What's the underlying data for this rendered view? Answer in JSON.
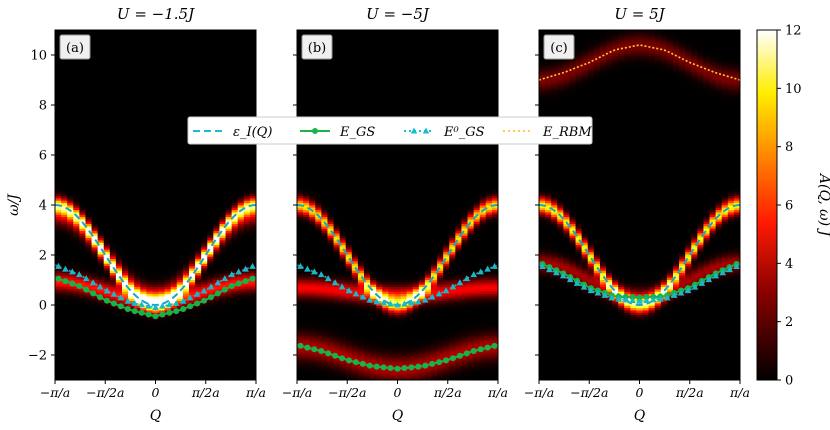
{
  "figure": {
    "ylabel": "ω/J",
    "xlabel": "Q",
    "colorbar_label": "A(Q, ω) J",
    "colorbar_ticks": [
      "0",
      "2",
      "4",
      "6",
      "8",
      "10",
      "12"
    ],
    "colorbar_range": [
      0,
      12
    ],
    "y_ticks": [
      "−2",
      "0",
      "2",
      "4",
      "6",
      "8",
      "10"
    ],
    "x_ticks": [
      "−π/a",
      "−π/2a",
      "0",
      "π/2a",
      "π/a"
    ],
    "legend": [
      {
        "label": "ε_I(Q)",
        "color": "#17becf",
        "style": "dashed"
      },
      {
        "label": "E_GS",
        "color": "#1bb34a",
        "style": "solid-circles"
      },
      {
        "label": "E⁰_GS",
        "color": "#17becf",
        "style": "dotted-triangles"
      },
      {
        "label": "E_RBM",
        "color": "#ffcc44",
        "style": "dotted"
      }
    ]
  },
  "chart_data": [
    {
      "type": "heatmap",
      "panel": "(a)",
      "title": "U = −1.5J",
      "xlim": [
        -3.1416,
        3.1416
      ],
      "ylim": [
        -3,
        11
      ],
      "series": [
        {
          "name": "ε_I(Q)",
          "x": [
            -3.1416,
            -2.3562,
            -1.5708,
            -0.7854,
            0,
            0.7854,
            1.5708,
            2.3562,
            3.1416
          ],
          "values": [
            4.0,
            3.41,
            2.0,
            0.59,
            0.0,
            0.59,
            2.0,
            3.41,
            4.0
          ]
        },
        {
          "name": "E_GS",
          "x": [
            -3.1416,
            -2.3562,
            -1.5708,
            -0.7854,
            0,
            0.7854,
            1.5708,
            2.3562,
            3.1416
          ],
          "values": [
            1.1,
            0.75,
            0.2,
            -0.2,
            -0.45,
            -0.2,
            0.2,
            0.75,
            1.1
          ]
        },
        {
          "name": "E⁰_GS",
          "x": [
            -3.1416,
            -2.3562,
            -1.5708,
            -0.7854,
            0,
            0.7854,
            1.5708,
            2.3562,
            3.1416
          ],
          "values": [
            1.6,
            1.2,
            0.6,
            0.1,
            -0.1,
            0.1,
            0.6,
            1.2,
            1.6
          ]
        }
      ]
    },
    {
      "type": "heatmap",
      "panel": "(b)",
      "title": "U = −5J",
      "xlim": [
        -3.1416,
        3.1416
      ],
      "ylim": [
        -3,
        11
      ],
      "series": [
        {
          "name": "ε_I(Q)",
          "x": [
            -3.1416,
            -2.3562,
            -1.5708,
            -0.7854,
            0,
            0.7854,
            1.5708,
            2.3562,
            3.1416
          ],
          "values": [
            4.0,
            3.41,
            2.0,
            0.59,
            0.0,
            0.59,
            2.0,
            3.41,
            4.0
          ]
        },
        {
          "name": "E_GS",
          "x": [
            -3.1416,
            -2.3562,
            -1.5708,
            -0.7854,
            0,
            0.7854,
            1.5708,
            2.3562,
            3.1416
          ],
          "values": [
            -1.6,
            -1.85,
            -2.2,
            -2.45,
            -2.55,
            -2.45,
            -2.2,
            -1.85,
            -1.6
          ]
        },
        {
          "name": "E⁰_GS",
          "x": [
            -3.1416,
            -2.3562,
            -1.5708,
            -0.7854,
            0,
            0.7854,
            1.5708,
            2.3562,
            3.1416
          ],
          "values": [
            1.6,
            1.2,
            0.6,
            0.15,
            0.0,
            0.15,
            0.6,
            1.2,
            1.6
          ]
        }
      ]
    },
    {
      "type": "heatmap",
      "panel": "(c)",
      "title": "U = 5J",
      "xlim": [
        -3.1416,
        3.1416
      ],
      "ylim": [
        -3,
        11
      ],
      "series": [
        {
          "name": "ε_I(Q)",
          "x": [
            -3.1416,
            -2.3562,
            -1.5708,
            -0.7854,
            0,
            0.7854,
            1.5708,
            2.3562,
            3.1416
          ],
          "values": [
            4.0,
            3.41,
            2.0,
            0.59,
            0.0,
            0.59,
            2.0,
            3.41,
            4.0
          ]
        },
        {
          "name": "E_GS",
          "x": [
            -3.1416,
            -2.3562,
            -1.5708,
            -0.7854,
            0,
            0.7854,
            1.5708,
            2.3562,
            3.1416
          ],
          "values": [
            1.7,
            1.25,
            0.7,
            0.35,
            0.3,
            0.35,
            0.7,
            1.25,
            1.7
          ]
        },
        {
          "name": "E⁰_GS",
          "x": [
            -3.1416,
            -2.3562,
            -1.5708,
            -0.7854,
            0,
            0.7854,
            1.5708,
            2.3562,
            3.1416
          ],
          "values": [
            1.6,
            1.15,
            0.6,
            0.25,
            0.15,
            0.25,
            0.6,
            1.15,
            1.6
          ]
        },
        {
          "name": "E_RBM",
          "x": [
            -3.1416,
            -2.3562,
            -1.5708,
            -0.7854,
            0,
            0.7854,
            1.5708,
            2.3562,
            3.1416
          ],
          "values": [
            9.0,
            9.3,
            9.7,
            10.2,
            10.4,
            10.2,
            9.7,
            9.3,
            9.0
          ]
        }
      ]
    }
  ]
}
